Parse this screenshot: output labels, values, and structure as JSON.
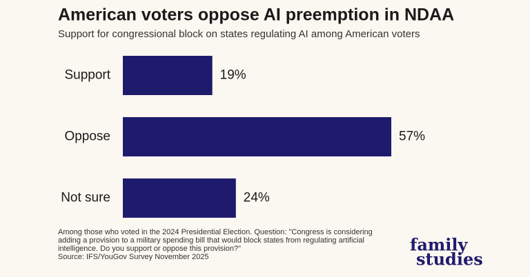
{
  "chart_data": {
    "type": "hbar",
    "title": "American voters oppose AI preemption in NDAA",
    "subtitle": "Support for congressional block on states regulating AI among American voters",
    "categories": [
      "Support",
      "Oppose",
      "Not sure"
    ],
    "values": [
      19,
      57,
      24
    ],
    "value_labels": [
      "19%",
      "57%",
      "24%"
    ],
    "color": "#1e1b6d",
    "note": [
      "Among those who voted in the 2024 Presidential Election. Question: \"Congress is considering",
      "adding a provision to a military spending bill that would block states from regulating artificial",
      "intelligence. Do you support or oppose this provision?\""
    ],
    "source": "Source: IFS/YouGov Survey November 2025"
  },
  "brand": [
    "family",
    "studies"
  ]
}
